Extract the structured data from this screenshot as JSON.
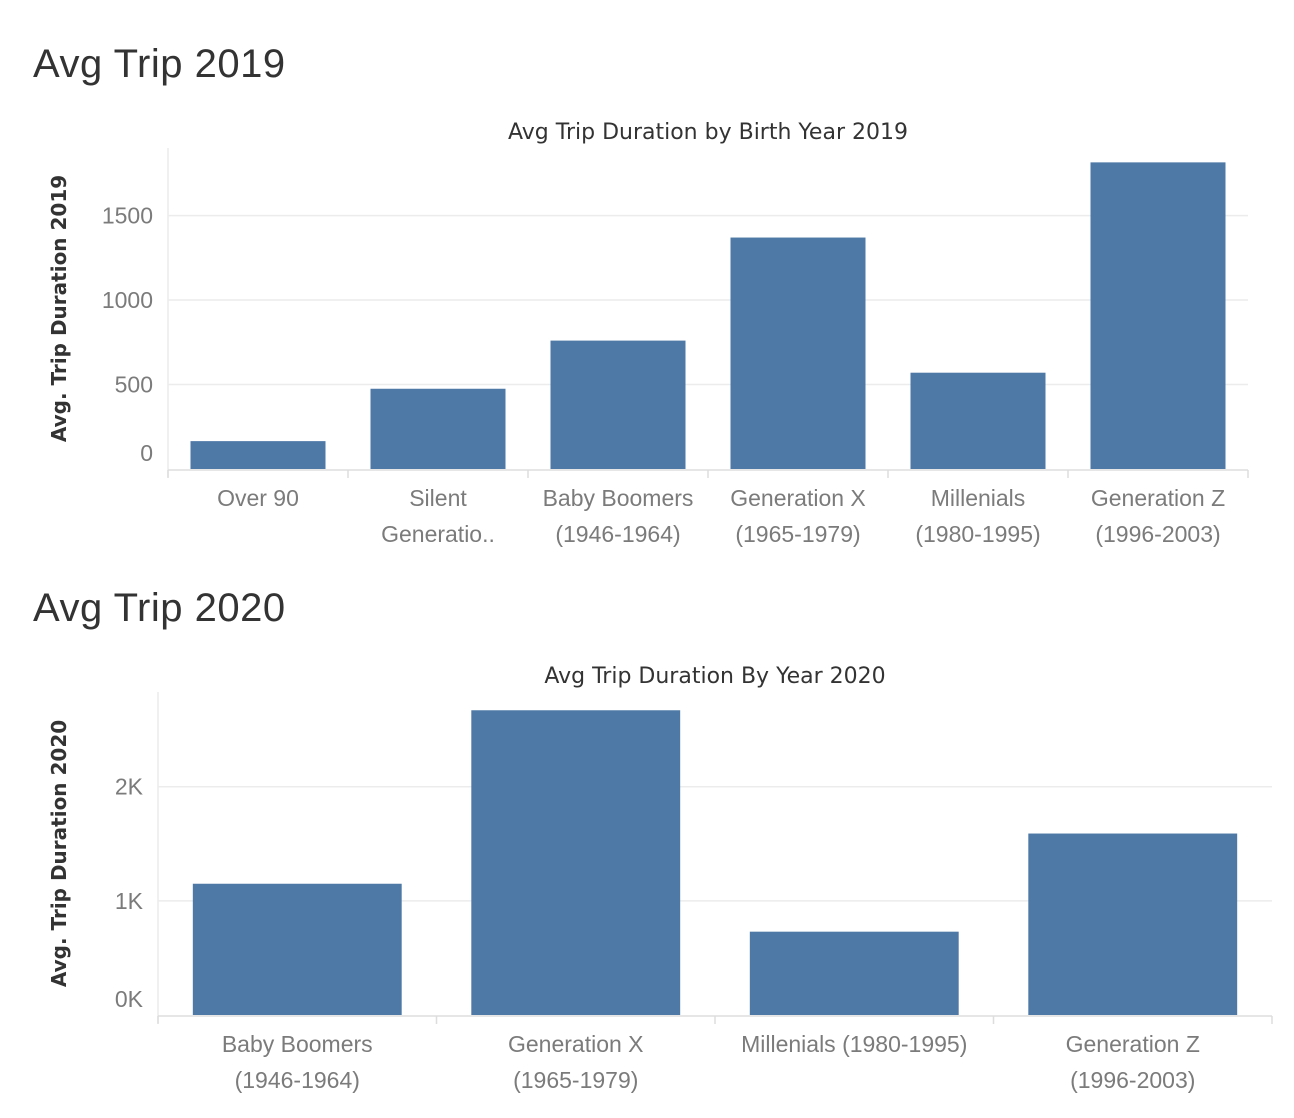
{
  "dashboard": {
    "title_2019": "Avg Trip 2019",
    "title_2020": "Avg Trip 2020"
  },
  "colors": {
    "bar": "#4e79a7",
    "grid": "#ececec",
    "text": "#333333",
    "tick": "#7b7b7b"
  },
  "chart_data": [
    {
      "type": "bar",
      "title": "Avg Trip Duration by Birth Year 2019",
      "ylabel": "Avg. Trip Duration 2019",
      "xlabel": "",
      "categories": [
        [
          "Over 90"
        ],
        [
          "Silent",
          "Generatio.."
        ],
        [
          "Baby Boomers",
          "(1946-1964)"
        ],
        [
          "Generation X",
          "(1965-1979)"
        ],
        [
          "Millenials",
          "(1980-1995)"
        ],
        [
          "Generation Z",
          "(1996-2003)"
        ]
      ],
      "values": [
        165,
        475,
        760,
        1370,
        570,
        1815
      ],
      "ylim": [
        0,
        1900
      ],
      "yticks": [
        0,
        500,
        1000,
        1500
      ],
      "ytick_labels": [
        "0",
        "500",
        "1000",
        "1500"
      ],
      "grid": true
    },
    {
      "type": "bar",
      "title": "Avg Trip Duration By Year 2020",
      "ylabel": "Avg. Trip Duration 2020",
      "xlabel": "",
      "categories": [
        [
          "Baby Boomers",
          "(1946-1964)"
        ],
        [
          "Generation X",
          "(1965-1979)"
        ],
        [
          "Millenials (1980-1995)"
        ],
        [
          "Generation Z",
          "(1996-2003)"
        ]
      ],
      "values": [
        1150,
        2670,
        730,
        1590
      ],
      "ylim": [
        0,
        2830
      ],
      "yticks": [
        0,
        1000,
        2000
      ],
      "ytick_labels": [
        "0K",
        "1K",
        "2K"
      ],
      "grid": true
    }
  ]
}
